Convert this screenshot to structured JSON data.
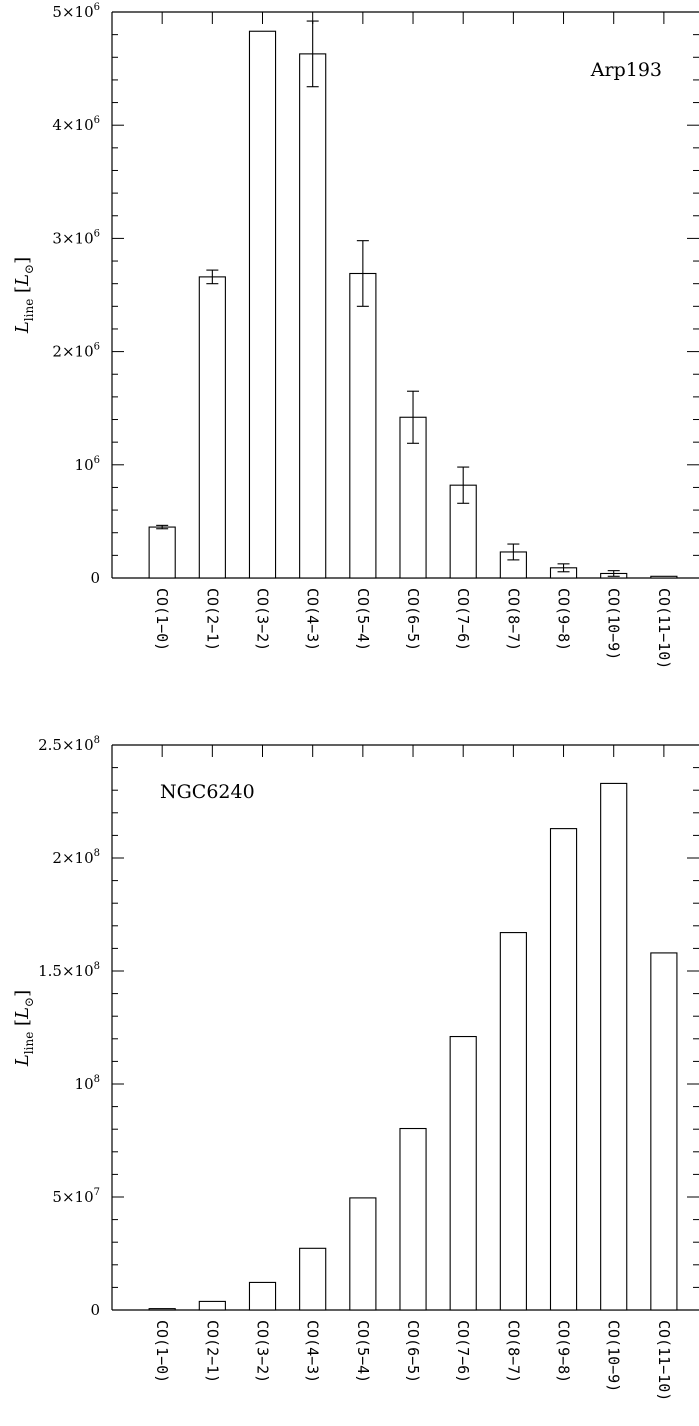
{
  "chart_data": [
    {
      "type": "bar",
      "annotation": "Arp193",
      "ylabel": "L_line [L_⊙]",
      "categories": [
        "CO(1−0)",
        "CO(2−1)",
        "CO(3−2)",
        "CO(4−3)",
        "CO(5−4)",
        "CO(6−5)",
        "CO(7−6)",
        "CO(8−7)",
        "CO(9−8)",
        "CO(10−9)",
        "CO(11−10)"
      ],
      "values": [
        450000,
        2660000,
        4830000,
        4630000,
        2690000,
        1420000,
        820000,
        230000,
        90000,
        40000,
        15000
      ],
      "errors": [
        15000,
        60000,
        0,
        290000,
        290000,
        230000,
        160000,
        70000,
        35000,
        25000,
        0
      ],
      "ylim": [
        0,
        5000000
      ],
      "yticks": [
        {
          "value": 0,
          "mant": "0",
          "exp": ""
        },
        {
          "value": 1000000,
          "mant": "10",
          "exp": "6"
        },
        {
          "value": 2000000,
          "mant": "2×10",
          "exp": "6"
        },
        {
          "value": 3000000,
          "mant": "3×10",
          "exp": "6"
        },
        {
          "value": 4000000,
          "mant": "4×10",
          "exp": "6"
        },
        {
          "value": 5000000,
          "mant": "5×10",
          "exp": "6"
        }
      ],
      "grid": false
    },
    {
      "type": "bar",
      "annotation": "NGC6240",
      "ylabel": "L_line [L_⊙]",
      "categories": [
        "CO(1−0)",
        "CO(2−1)",
        "CO(3−2)",
        "CO(4−3)",
        "CO(5−4)",
        "CO(6−5)",
        "CO(7−6)",
        "CO(8−7)",
        "CO(9−8)",
        "CO(10−9)",
        "CO(11−10)"
      ],
      "values": [
        600000,
        3800000,
        12200000,
        27300000,
        49600000,
        80300000,
        121000000,
        167000000,
        213000000,
        233000000,
        158000000
      ],
      "ylim": [
        0,
        250000000
      ],
      "yticks": [
        {
          "value": 0,
          "mant": "0",
          "exp": ""
        },
        {
          "value": 50000000,
          "mant": "5×10",
          "exp": "7"
        },
        {
          "value": 100000000,
          "mant": "10",
          "exp": "8"
        },
        {
          "value": 150000000,
          "mant": "1.5×10",
          "exp": "8"
        },
        {
          "value": 200000000,
          "mant": "2×10",
          "exp": "8"
        },
        {
          "value": 250000000,
          "mant": "2.5×10",
          "exp": "8"
        }
      ],
      "grid": false
    }
  ]
}
